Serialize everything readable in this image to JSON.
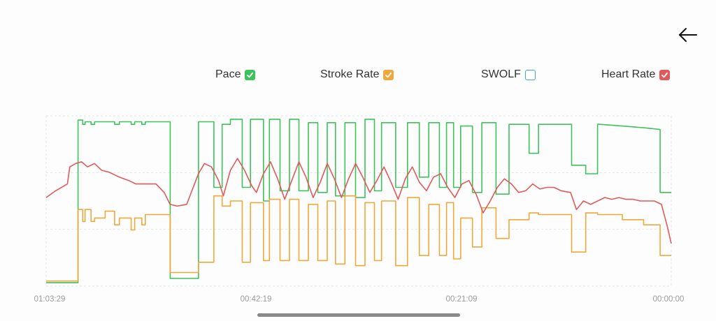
{
  "nav": {
    "back_icon": "arrow-left-icon"
  },
  "legend": [
    {
      "key": "pace",
      "label": "Pace",
      "checked": true,
      "color": "#3cc35c"
    },
    {
      "key": "stroke_rate",
      "label": "Stroke Rate",
      "checked": true,
      "color": "#f0a83a"
    },
    {
      "key": "swolf",
      "label": "SWOLF",
      "checked": false,
      "color": "#3ca8d8"
    },
    {
      "key": "heart_rate",
      "label": "Heart Rate",
      "checked": true,
      "color": "#e05a5a"
    }
  ],
  "chart_data": {
    "type": "line",
    "x_tick_labels": [
      "01:03:29",
      "00:42:19",
      "00:21:09",
      "00:00:00"
    ],
    "x_range_seconds": [
      3809,
      0
    ],
    "grid": true,
    "legend_position": "top",
    "series": [
      {
        "name": "Pace",
        "color": "#3cc35c",
        "step": true,
        "points": [
          [
            0,
            2
          ],
          [
            0.0459,
            2
          ],
          [
            0.0459,
            97.5
          ],
          [
            0.0527,
            97.5
          ],
          [
            0.0527,
            95
          ],
          [
            0.0561,
            95
          ],
          [
            0.0561,
            96.5
          ],
          [
            0.0646,
            96.5
          ],
          [
            0.0646,
            95
          ],
          [
            0.0698,
            95
          ],
          [
            0.0698,
            96.5
          ],
          [
            0.0986,
            96.5
          ],
          [
            0.0986,
            95
          ],
          [
            0.1054,
            95
          ],
          [
            0.1054,
            96.5
          ],
          [
            0.1224,
            96.5
          ],
          [
            0.1224,
            95
          ],
          [
            0.1275,
            95
          ],
          [
            0.1275,
            96.5
          ],
          [
            0.1377,
            96.5
          ],
          [
            0.1377,
            95
          ],
          [
            0.1428,
            95
          ],
          [
            0.1428,
            96.5
          ],
          [
            0.1786,
            96.5
          ],
          [
            0.1786,
            4.5
          ],
          [
            0.2194,
            4.5
          ],
          [
            0.2194,
            96.5
          ],
          [
            0.2415,
            96.5
          ],
          [
            0.2415,
            58
          ],
          [
            0.2534,
            58
          ],
          [
            0.2534,
            95
          ],
          [
            0.2653,
            95
          ],
          [
            0.2653,
            98
          ],
          [
            0.2823,
            98
          ],
          [
            0.2823,
            58
          ],
          [
            0.2942,
            58
          ],
          [
            0.2942,
            98
          ],
          [
            0.3129,
            98
          ],
          [
            0.3129,
            50
          ],
          [
            0.3214,
            50
          ],
          [
            0.3214,
            98
          ],
          [
            0.3367,
            98
          ],
          [
            0.3367,
            56
          ],
          [
            0.3503,
            56
          ],
          [
            0.3503,
            98
          ],
          [
            0.3639,
            98
          ],
          [
            0.3639,
            56
          ],
          [
            0.3775,
            56
          ],
          [
            0.3775,
            96
          ],
          [
            0.3911,
            96
          ],
          [
            0.3911,
            55
          ],
          [
            0.4047,
            55
          ],
          [
            0.4047,
            96
          ],
          [
            0.4166,
            96
          ],
          [
            0.4166,
            53
          ],
          [
            0.4302,
            53
          ],
          [
            0.4302,
            96
          ],
          [
            0.4455,
            96
          ],
          [
            0.4455,
            52
          ],
          [
            0.4591,
            52
          ],
          [
            0.4591,
            98
          ],
          [
            0.4727,
            98
          ],
          [
            0.4727,
            56
          ],
          [
            0.4829,
            56
          ],
          [
            0.4829,
            96
          ],
          [
            0.5033,
            96
          ],
          [
            0.5033,
            58
          ],
          [
            0.5203,
            58
          ],
          [
            0.5203,
            96
          ],
          [
            0.5373,
            96
          ],
          [
            0.5373,
            64
          ],
          [
            0.5509,
            64
          ],
          [
            0.5509,
            96
          ],
          [
            0.5662,
            96
          ],
          [
            0.5662,
            58
          ],
          [
            0.5764,
            58
          ],
          [
            0.5764,
            96
          ],
          [
            0.5866,
            96
          ],
          [
            0.5866,
            58
          ],
          [
            0.5968,
            58
          ],
          [
            0.5968,
            94
          ],
          [
            0.6138,
            94
          ],
          [
            0.6138,
            55
          ],
          [
            0.6273,
            55
          ],
          [
            0.6273,
            96
          ],
          [
            0.6477,
            96
          ],
          [
            0.6477,
            54
          ],
          [
            0.6664,
            54
          ],
          [
            0.6664,
            95
          ],
          [
            0.6953,
            95
          ],
          [
            0.6953,
            78
          ],
          [
            0.7089,
            78
          ],
          [
            0.7089,
            95
          ],
          [
            0.7565,
            95
          ],
          [
            0.7565,
            71
          ],
          [
            0.7769,
            71
          ],
          [
            0.7769,
            66
          ],
          [
            0.7939,
            66
          ],
          [
            0.7939,
            95
          ],
          [
            0.7973,
            95
          ],
          [
            0.7973,
            95
          ],
          [
            0.8296,
            94
          ],
          [
            0.8602,
            93
          ],
          [
            0.884,
            92
          ],
          [
            0.884,
            55
          ],
          [
            0.9,
            55
          ]
        ]
      },
      {
        "name": "Stroke Rate",
        "color": "#f0a83a",
        "step": true,
        "points": [
          [
            0,
            3
          ],
          [
            0.0459,
            3
          ],
          [
            0.0459,
            45
          ],
          [
            0.0527,
            45
          ],
          [
            0.0527,
            38
          ],
          [
            0.0561,
            38
          ],
          [
            0.0561,
            45
          ],
          [
            0.0646,
            45
          ],
          [
            0.0646,
            38
          ],
          [
            0.0698,
            38
          ],
          [
            0.0698,
            40
          ],
          [
            0.085,
            40
          ],
          [
            0.085,
            44
          ],
          [
            0.0986,
            44
          ],
          [
            0.0986,
            36
          ],
          [
            0.1054,
            36
          ],
          [
            0.1054,
            40
          ],
          [
            0.1224,
            40
          ],
          [
            0.1224,
            33
          ],
          [
            0.1275,
            33
          ],
          [
            0.1275,
            40
          ],
          [
            0.1377,
            40
          ],
          [
            0.1377,
            36
          ],
          [
            0.1428,
            36
          ],
          [
            0.1428,
            42
          ],
          [
            0.1786,
            42
          ],
          [
            0.1786,
            8
          ],
          [
            0.2194,
            8
          ],
          [
            0.2194,
            14
          ],
          [
            0.2415,
            14
          ],
          [
            0.2415,
            53
          ],
          [
            0.2534,
            53
          ],
          [
            0.2534,
            47
          ],
          [
            0.2653,
            47
          ],
          [
            0.2653,
            50
          ],
          [
            0.2823,
            50
          ],
          [
            0.2823,
            14
          ],
          [
            0.2942,
            14
          ],
          [
            0.2942,
            49
          ],
          [
            0.3129,
            49
          ],
          [
            0.3129,
            15
          ],
          [
            0.3214,
            15
          ],
          [
            0.3214,
            51
          ],
          [
            0.3367,
            51
          ],
          [
            0.3367,
            15
          ],
          [
            0.3503,
            15
          ],
          [
            0.3503,
            51
          ],
          [
            0.3639,
            51
          ],
          [
            0.3639,
            15
          ],
          [
            0.3775,
            15
          ],
          [
            0.3775,
            48
          ],
          [
            0.3911,
            48
          ],
          [
            0.3911,
            15
          ],
          [
            0.4047,
            15
          ],
          [
            0.4047,
            50
          ],
          [
            0.4166,
            50
          ],
          [
            0.4166,
            13
          ],
          [
            0.4302,
            13
          ],
          [
            0.4302,
            53
          ],
          [
            0.4455,
            53
          ],
          [
            0.4455,
            12
          ],
          [
            0.4591,
            12
          ],
          [
            0.4591,
            49
          ],
          [
            0.4727,
            49
          ],
          [
            0.4727,
            15
          ],
          [
            0.4829,
            15
          ],
          [
            0.4829,
            50
          ],
          [
            0.5033,
            50
          ],
          [
            0.5033,
            12
          ],
          [
            0.5203,
            12
          ],
          [
            0.5203,
            52
          ],
          [
            0.5373,
            52
          ],
          [
            0.5373,
            18
          ],
          [
            0.5509,
            18
          ],
          [
            0.5509,
            48
          ],
          [
            0.5662,
            48
          ],
          [
            0.5662,
            18
          ],
          [
            0.5764,
            18
          ],
          [
            0.5764,
            49
          ],
          [
            0.5866,
            49
          ],
          [
            0.5866,
            16
          ],
          [
            0.5968,
            16
          ],
          [
            0.5968,
            40
          ],
          [
            0.6138,
            40
          ],
          [
            0.6138,
            23
          ],
          [
            0.6273,
            23
          ],
          [
            0.6273,
            46
          ],
          [
            0.6477,
            46
          ],
          [
            0.6477,
            28
          ],
          [
            0.6664,
            28
          ],
          [
            0.6664,
            39
          ],
          [
            0.6953,
            39
          ],
          [
            0.6953,
            43
          ],
          [
            0.7089,
            43
          ],
          [
            0.7089,
            42
          ],
          [
            0.7565,
            42
          ],
          [
            0.7565,
            20
          ],
          [
            0.7769,
            20
          ],
          [
            0.7769,
            43
          ],
          [
            0.7939,
            43
          ],
          [
            0.7939,
            42
          ],
          [
            0.8296,
            42
          ],
          [
            0.8296,
            39
          ],
          [
            0.8602,
            39
          ],
          [
            0.8602,
            36
          ],
          [
            0.884,
            36
          ],
          [
            0.884,
            18
          ],
          [
            0.9,
            18
          ]
        ]
      },
      {
        "name": "Heart Rate",
        "color": "#e05a5a",
        "step": false,
        "points": [
          [
            0,
            52
          ],
          [
            0.0136,
            56
          ],
          [
            0.0306,
            60
          ],
          [
            0.034,
            70
          ],
          [
            0.0425,
            72
          ],
          [
            0.051,
            73
          ],
          [
            0.0595,
            70
          ],
          [
            0.0697,
            72
          ],
          [
            0.0799,
            68
          ],
          [
            0.0901,
            67
          ],
          [
            0.1054,
            64
          ],
          [
            0.119,
            62
          ],
          [
            0.1292,
            60
          ],
          [
            0.1445,
            60
          ],
          [
            0.1581,
            60
          ],
          [
            0.1699,
            55
          ],
          [
            0.1785,
            48
          ],
          [
            0.1888,
            47
          ],
          [
            0.2023,
            48
          ],
          [
            0.2193,
            66
          ],
          [
            0.2279,
            72
          ],
          [
            0.2381,
            70
          ],
          [
            0.2483,
            62
          ],
          [
            0.2551,
            53
          ],
          [
            0.2653,
            68
          ],
          [
            0.2755,
            75
          ],
          [
            0.2857,
            68
          ],
          [
            0.2959,
            59
          ],
          [
            0.3027,
            55
          ],
          [
            0.3129,
            66
          ],
          [
            0.3231,
            73
          ],
          [
            0.3333,
            63
          ],
          [
            0.3435,
            51
          ],
          [
            0.3537,
            62
          ],
          [
            0.3639,
            73
          ],
          [
            0.3741,
            64
          ],
          [
            0.3844,
            52
          ],
          [
            0.3946,
            61
          ],
          [
            0.4048,
            72
          ],
          [
            0.415,
            63
          ],
          [
            0.4252,
            52
          ],
          [
            0.4354,
            63
          ],
          [
            0.4456,
            72
          ],
          [
            0.4558,
            64
          ],
          [
            0.466,
            55
          ],
          [
            0.4762,
            62
          ],
          [
            0.4864,
            70
          ],
          [
            0.4966,
            61
          ],
          [
            0.5068,
            51
          ],
          [
            0.517,
            63
          ],
          [
            0.5272,
            70
          ],
          [
            0.5374,
            61
          ],
          [
            0.5476,
            56
          ],
          [
            0.5578,
            64
          ],
          [
            0.568,
            66
          ],
          [
            0.5782,
            58
          ],
          [
            0.5884,
            52
          ],
          [
            0.5986,
            60
          ],
          [
            0.6088,
            62
          ],
          [
            0.619,
            54
          ],
          [
            0.6292,
            43
          ],
          [
            0.6394,
            50
          ],
          [
            0.6496,
            58
          ],
          [
            0.6598,
            63
          ],
          [
            0.67,
            60
          ],
          [
            0.6802,
            55
          ],
          [
            0.6904,
            56
          ],
          [
            0.7006,
            60
          ],
          [
            0.7108,
            57
          ],
          [
            0.721,
            58
          ],
          [
            0.7312,
            58
          ],
          [
            0.7414,
            56
          ],
          [
            0.755,
            55
          ],
          [
            0.7635,
            45
          ],
          [
            0.7737,
            50
          ],
          [
            0.7839,
            48
          ],
          [
            0.7941,
            50
          ],
          [
            0.8043,
            52
          ],
          [
            0.8145,
            51
          ],
          [
            0.8247,
            52
          ],
          [
            0.8349,
            51
          ],
          [
            0.8451,
            51
          ],
          [
            0.8553,
            50
          ],
          [
            0.8655,
            50
          ],
          [
            0.8757,
            50
          ],
          [
            0.8859,
            48
          ],
          [
            0.8944,
            35
          ],
          [
            0.9,
            25
          ]
        ]
      }
    ]
  }
}
